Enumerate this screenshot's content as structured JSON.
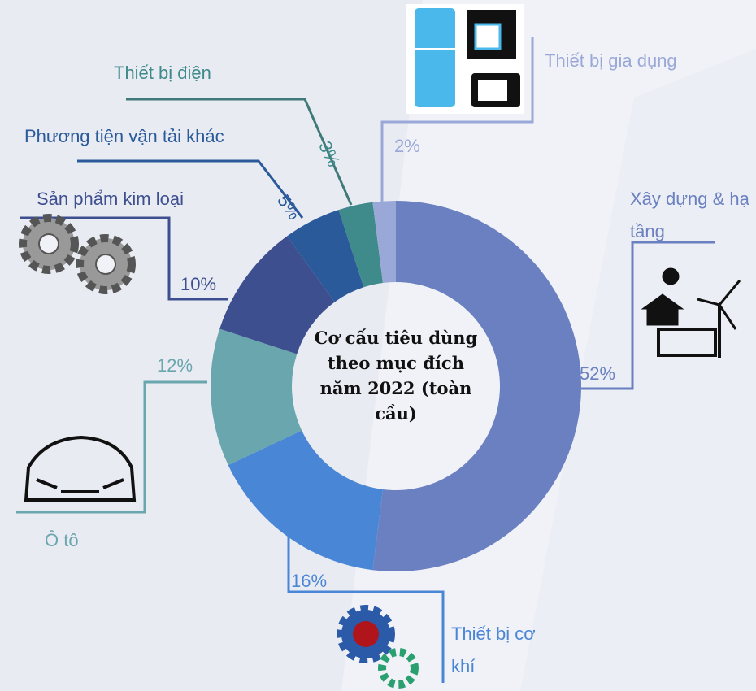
{
  "chart_data": {
    "type": "donut",
    "title": "Cơ cấu tiêu dùng theo mục đích năm 2022 (toàn cầu)",
    "categories": [
      "Xây dựng & hạ tầng",
      "Thiết bị cơ khí",
      "Ô tô",
      "Sản phẩm kim loại",
      "Phương tiện vận tải khác",
      "Thiết bị điện",
      "Thiết bị gia dụng"
    ],
    "values": [
      52,
      16,
      12,
      10,
      5,
      3,
      2
    ],
    "value_labels": [
      "52%",
      "16%",
      "12%",
      "10%",
      "5%",
      "3%",
      "2%"
    ],
    "colors": [
      "#6a80c0",
      "#4a86d6",
      "#6aa6ae",
      "#3d4f8e",
      "#2a5a9a",
      "#3f8a8a",
      "#9aa8d8"
    ]
  }
}
